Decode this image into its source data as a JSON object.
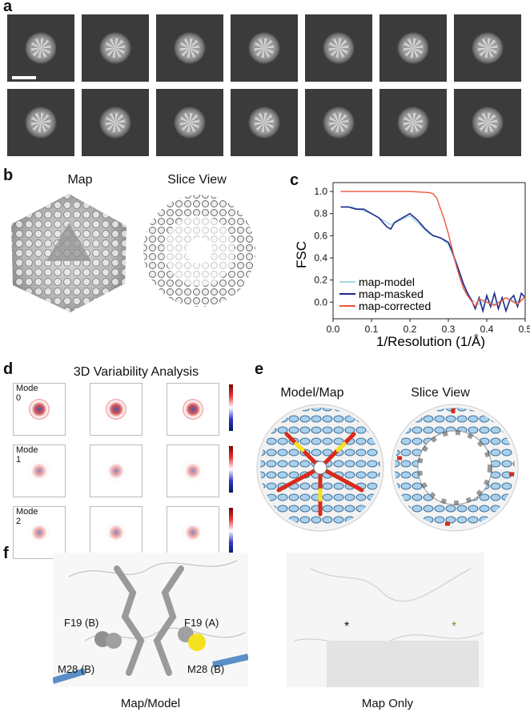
{
  "panels": {
    "a": {
      "label": "a"
    },
    "b": {
      "label": "b",
      "map_title": "Map",
      "slice_title": "Slice View"
    },
    "c": {
      "label": "c"
    },
    "d": {
      "label": "d",
      "title": "3D Variability Analysis",
      "modes": [
        "Mode 0",
        "Mode 1",
        "Mode 2"
      ]
    },
    "e": {
      "label": "e",
      "model_title": "Model/Map",
      "slice_title": "Slice View"
    },
    "f": {
      "label": "f",
      "left_caption": "Map/Model",
      "right_caption": "Map Only",
      "annotations": [
        "F19 (B)",
        "F19 (A)",
        "M28 (B)",
        "M28 (B)"
      ],
      "stars": [
        "*",
        "*"
      ]
    }
  },
  "chart_data": {
    "type": "line",
    "xlabel": "1/Resolution (1/Å)",
    "ylabel": "FSC",
    "xlim": [
      0,
      0.5
    ],
    "ylim": [
      -0.15,
      1.08
    ],
    "xticks": [
      "0.0",
      "0.1",
      "0.2",
      "0.3",
      "0.4",
      "0.5"
    ],
    "yticks": [
      "0.0",
      "0.2",
      "0.4",
      "0.6",
      "0.8",
      "1.0"
    ],
    "legend_position": "bottom-left",
    "series": [
      {
        "name": "map-model",
        "color": "#a8d4ea",
        "x": [
          0.02,
          0.05,
          0.1,
          0.15,
          0.2,
          0.25,
          0.28,
          0.3,
          0.31,
          0.32,
          0.33,
          0.34,
          0.35,
          0.36,
          0.37,
          0.38,
          0.4,
          0.42,
          0.45,
          0.48,
          0.5
        ],
        "y": [
          0.86,
          0.86,
          0.8,
          0.7,
          0.78,
          0.62,
          0.58,
          0.52,
          0.44,
          0.34,
          0.24,
          0.14,
          0.06,
          0.02,
          0.0,
          -0.02,
          0.03,
          -0.02,
          0.04,
          0.0,
          0.05
        ]
      },
      {
        "name": "map-masked",
        "color": "#1a2a8c",
        "x": [
          0.02,
          0.04,
          0.06,
          0.08,
          0.1,
          0.12,
          0.13,
          0.14,
          0.15,
          0.16,
          0.18,
          0.2,
          0.22,
          0.24,
          0.26,
          0.28,
          0.3,
          0.31,
          0.32,
          0.33,
          0.34,
          0.35,
          0.36,
          0.37,
          0.38,
          0.39,
          0.4,
          0.41,
          0.42,
          0.43,
          0.44,
          0.45,
          0.46,
          0.47,
          0.48,
          0.49,
          0.5
        ],
        "y": [
          0.86,
          0.86,
          0.84,
          0.84,
          0.8,
          0.76,
          0.72,
          0.68,
          0.66,
          0.72,
          0.76,
          0.8,
          0.74,
          0.66,
          0.6,
          0.58,
          0.54,
          0.46,
          0.36,
          0.26,
          0.16,
          0.08,
          0.02,
          -0.06,
          0.04,
          -0.08,
          0.06,
          -0.04,
          0.08,
          -0.06,
          0.04,
          -0.08,
          0.02,
          0.06,
          -0.04,
          0.08,
          0.04
        ]
      },
      {
        "name": "map-corrected",
        "color": "#f0553a",
        "x": [
          0.02,
          0.05,
          0.1,
          0.15,
          0.2,
          0.25,
          0.26,
          0.27,
          0.28,
          0.29,
          0.3,
          0.31,
          0.32,
          0.33,
          0.34,
          0.35,
          0.36,
          0.37,
          0.38,
          0.4,
          0.42,
          0.45,
          0.48,
          0.5
        ],
        "y": [
          1.0,
          1.0,
          1.0,
          1.0,
          1.0,
          0.99,
          0.98,
          0.94,
          0.84,
          0.74,
          0.62,
          0.48,
          0.34,
          0.22,
          0.12,
          0.06,
          0.01,
          -0.04,
          0.03,
          0.0,
          -0.03,
          0.04,
          -0.02,
          0.05
        ]
      }
    ]
  }
}
